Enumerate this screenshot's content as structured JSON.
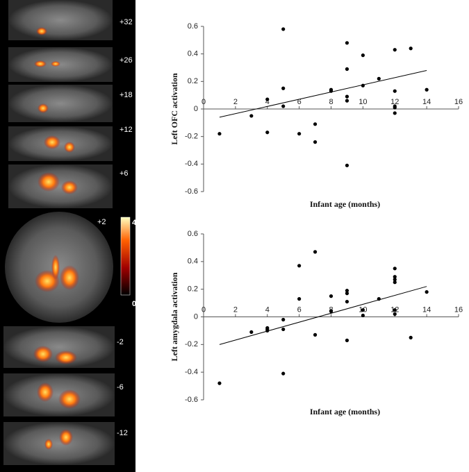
{
  "slices": {
    "labels": [
      "+32",
      "+26",
      "+18",
      "+12",
      "+6",
      "+2",
      "-2",
      "-6",
      "-12"
    ],
    "colorbar": {
      "max": 4,
      "min": 0
    }
  },
  "chart_data": [
    {
      "type": "scatter",
      "x_label": "Infant age (months)",
      "y_label": "Left OFC activation",
      "x": [
        1,
        3,
        4,
        4,
        5,
        5,
        5,
        6,
        7,
        7,
        8,
        8,
        9,
        9,
        9,
        9,
        9,
        10,
        10,
        11,
        12,
        12,
        12,
        12,
        12,
        13,
        14
      ],
      "values": [
        -0.18,
        -0.05,
        0.07,
        -0.17,
        0.58,
        0.15,
        0.02,
        -0.18,
        -0.11,
        -0.24,
        0.14,
        0.13,
        0.48,
        0.29,
        0.09,
        0.06,
        -0.41,
        0.39,
        0.17,
        0.22,
        0.43,
        0.13,
        0.02,
        0.01,
        -0.03,
        0.44,
        0.14
      ],
      "color": "#000000",
      "trendline": {
        "x": [
          1,
          14
        ],
        "y": [
          -0.06,
          0.28
        ]
      },
      "xlim": [
        0,
        16
      ],
      "xticks": [
        0,
        2,
        4,
        6,
        8,
        10,
        12,
        14,
        16
      ],
      "ylim": [
        -0.6,
        0.6
      ],
      "yticks": [
        0.6,
        0.4,
        0.2,
        0,
        -0.2,
        -0.4,
        -0.6
      ]
    },
    {
      "type": "scatter",
      "x_label": "Infant age (months)",
      "y_label": "Left amygdala activation",
      "x": [
        1,
        3,
        4,
        4,
        4,
        5,
        5,
        5,
        6,
        6,
        7,
        7,
        8,
        8,
        9,
        9,
        9,
        9,
        10,
        10,
        11,
        12,
        12,
        12,
        12,
        12,
        12,
        13,
        14
      ],
      "values": [
        -0.48,
        -0.11,
        -0.08,
        -0.09,
        -0.1,
        -0.02,
        -0.09,
        -0.41,
        0.37,
        0.13,
        0.47,
        -0.13,
        0.15,
        0.04,
        0.19,
        0.17,
        0.11,
        -0.17,
        0.05,
        0.01,
        0.13,
        0.35,
        0.29,
        0.27,
        0.25,
        0.05,
        0.02,
        -0.15,
        0.18
      ],
      "color": "#000000",
      "trendline": {
        "x": [
          1,
          14
        ],
        "y": [
          -0.2,
          0.22
        ]
      },
      "xlim": [
        0,
        16
      ],
      "xticks": [
        0,
        2,
        4,
        6,
        8,
        10,
        12,
        14,
        16
      ],
      "ylim": [
        -0.6,
        0.6
      ],
      "yticks": [
        0.6,
        0.4,
        0.2,
        0,
        -0.2,
        -0.4,
        -0.6
      ]
    }
  ]
}
